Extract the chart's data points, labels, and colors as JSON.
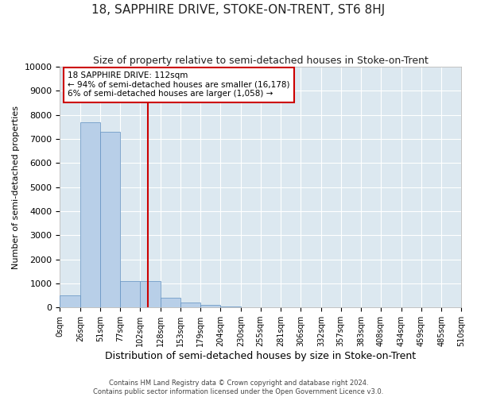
{
  "title": "18, SAPPHIRE DRIVE, STOKE-ON-TRENT, ST6 8HJ",
  "subtitle": "Size of property relative to semi-detached houses in Stoke-on-Trent",
  "xlabel": "Distribution of semi-detached houses by size in Stoke-on-Trent",
  "ylabel": "Number of semi-detached properties",
  "footer_line1": "Contains HM Land Registry data © Crown copyright and database right 2024.",
  "footer_line2": "Contains public sector information licensed under the Open Government Licence v3.0.",
  "property_size": 112,
  "annotation_title": "18 SAPPHIRE DRIVE: 112sqm",
  "annotation_line2": "← 94% of semi-detached houses are smaller (16,178)",
  "annotation_line3": "6% of semi-detached houses are larger (1,058) →",
  "bin_edges": [
    0,
    26,
    51,
    77,
    102,
    128,
    153,
    179,
    204,
    230,
    255,
    281,
    306,
    332,
    357,
    383,
    408,
    434,
    459,
    485,
    510
  ],
  "bin_counts": [
    500,
    7700,
    7300,
    1100,
    1100,
    400,
    200,
    100,
    50,
    0,
    0,
    0,
    0,
    0,
    0,
    0,
    0,
    0,
    0,
    0
  ],
  "bar_color": "#b8cfe8",
  "bar_edge_color": "#6090c0",
  "vline_x": 112,
  "vline_color": "#cc0000",
  "annotation_box_color": "#ffffff",
  "annotation_box_edge": "#cc0000",
  "ylim": [
    0,
    10000
  ],
  "yticks": [
    0,
    1000,
    2000,
    3000,
    4000,
    5000,
    6000,
    7000,
    8000,
    9000,
    10000
  ],
  "fig_bg_color": "#ffffff",
  "plot_bg_color": "#dce8f0"
}
